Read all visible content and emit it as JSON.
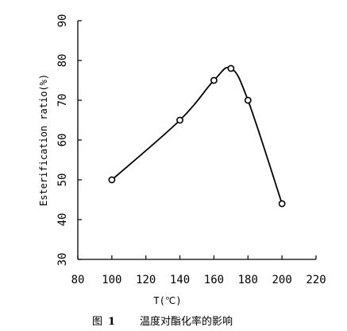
{
  "chart_data": {
    "type": "line",
    "x": [
      100,
      140,
      160,
      170,
      180,
      200
    ],
    "y": [
      50,
      65,
      75,
      78,
      70,
      44
    ],
    "xlabel": "T(℃)",
    "ylabel": "Esterification ratio(%)",
    "xlim": [
      80,
      220
    ],
    "ylim": [
      30,
      90
    ],
    "xticks": [
      80,
      100,
      120,
      140,
      160,
      180,
      200,
      220
    ],
    "yticks": [
      30,
      40,
      50,
      60,
      70,
      80,
      90
    ],
    "grid": false,
    "marker": "open-circle"
  },
  "caption": {
    "label": "图",
    "number": "1",
    "text": "温度对酯化率的影响"
  }
}
